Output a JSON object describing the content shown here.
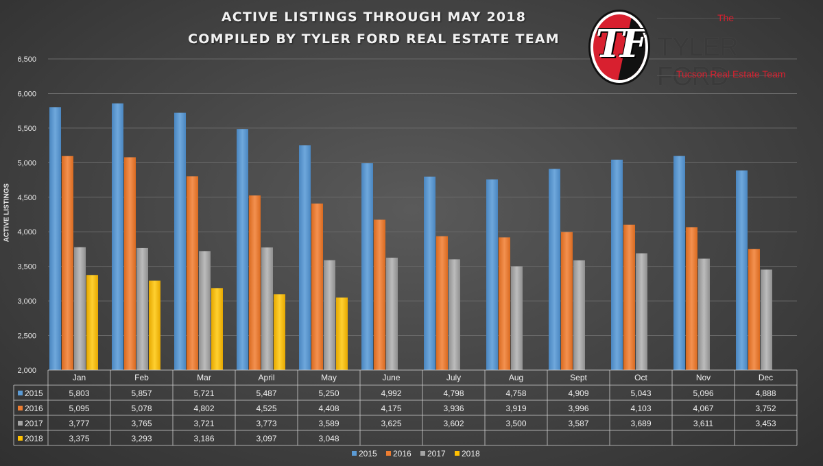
{
  "title_line1": "ACTIVE LISTINGS THROUGH MAY 2018",
  "title_line2": "COMPILED BY TYLER FORD REAL ESTATE TEAM",
  "logo": {
    "monogram": "TF",
    "the": "The",
    "name": "TYLER FORD",
    "subtitle": "Tucson Real Estate Team"
  },
  "colors": {
    "2015": "#5b9bd5",
    "2016": "#ed7d31",
    "2017": "#a5a5a5",
    "2018": "#ffc000"
  },
  "chart_data": {
    "type": "bar",
    "ylabel": "ACTIVE LISTINGS",
    "ylim": [
      2000,
      6500
    ],
    "ytick_step": 500,
    "grid": true,
    "legend": "bottom",
    "categories": [
      "Jan",
      "Feb",
      "Mar",
      "April",
      "May",
      "June",
      "July",
      "Aug",
      "Sept",
      "Oct",
      "Nov",
      "Dec"
    ],
    "series": [
      {
        "name": "2015",
        "values": [
          5803,
          5857,
          5721,
          5487,
          5250,
          4992,
          4798,
          4758,
          4909,
          5043,
          5096,
          4888
        ]
      },
      {
        "name": "2016",
        "values": [
          5095,
          5078,
          4802,
          4525,
          4408,
          4175,
          3936,
          3919,
          3996,
          4103,
          4067,
          3752
        ]
      },
      {
        "name": "2017",
        "values": [
          3777,
          3765,
          3721,
          3773,
          3589,
          3625,
          3602,
          3500,
          3587,
          3689,
          3611,
          3453
        ]
      },
      {
        "name": "2018",
        "values": [
          3375,
          3293,
          3186,
          3097,
          3048,
          null,
          null,
          null,
          null,
          null,
          null,
          null
        ]
      }
    ]
  }
}
